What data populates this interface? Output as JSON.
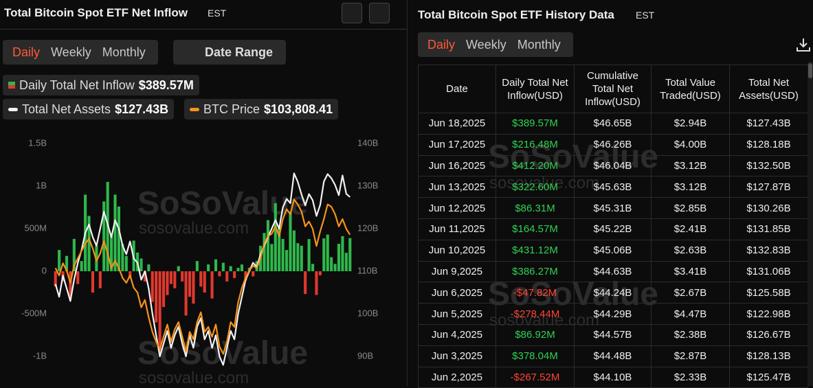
{
  "left": {
    "title": "Total Bitcoin Spot ETF Net Inflow",
    "timezone": "EST",
    "tabs": [
      "Daily",
      "Weekly",
      "Monthly"
    ],
    "date_range": "Date Range",
    "legend": [
      {
        "label": "Daily Total Net Inflow",
        "value": "$389.57M"
      },
      {
        "label": "Total Net Assets",
        "value": "$127.43B"
      },
      {
        "label": "BTC Price",
        "value": "$103,808.41"
      }
    ]
  },
  "chart_data": {
    "type": "bar-line",
    "grid": false,
    "ylim": [
      -1000,
      1500
    ],
    "yticks": [
      {
        "value": -1000,
        "label": "-1B"
      },
      {
        "value": -500,
        "label": "-500M"
      },
      0,
      {
        "value": 500,
        "label": "500M"
      },
      {
        "value": 1000,
        "label": "1B"
      },
      {
        "value": 1500,
        "label": "1.5B"
      }
    ],
    "y2lim": [
      90,
      140
    ],
    "y2ticks": [
      {
        "value": 90,
        "label": "90B"
      },
      {
        "value": 100,
        "label": "100B"
      },
      {
        "value": 110,
        "label": "110B"
      },
      {
        "value": 120,
        "label": "120B"
      },
      {
        "value": 130,
        "label": "130B"
      },
      {
        "value": 140,
        "label": "140B"
      }
    ],
    "y3lim": [
      79000,
      122400
    ],
    "series": [
      {
        "name": "Daily Total Net Inflow",
        "type": "bar",
        "positive_color": "#2fb84c",
        "negative_color": "#e0392f",
        "values": [
          -180,
          250,
          -120,
          180,
          -300,
          380,
          -150,
          120,
          900,
          650,
          -250,
          300,
          -200,
          820,
          1050,
          420,
          900,
          760,
          320,
          180,
          -80,
          360,
          220,
          150,
          -120,
          80,
          -360,
          -600,
          -950,
          -420,
          -280,
          -150,
          -200,
          60,
          -120,
          -520,
          -300,
          -380,
          120,
          -180,
          -250,
          80,
          -320,
          140,
          -60,
          100,
          -120,
          60,
          -80,
          40,
          80,
          -110,
          40,
          -60,
          120,
          300,
          450,
          600,
          320,
          800,
          520,
          380,
          250,
          700,
          480,
          330,
          300,
          -267.52,
          378.04,
          86.92,
          -278.44,
          -47.82,
          386.27,
          431.12,
          164.57,
          86.31,
          322.6,
          412.2,
          216.48,
          389.57
        ]
      },
      {
        "name": "Total Net Assets",
        "type": "line",
        "axis": "y2",
        "color": "#f2f2f2",
        "values": [
          107,
          104,
          109,
          106,
          103,
          108,
          112,
          115,
          119,
          121,
          118,
          116,
          120,
          124,
          121,
          118,
          122,
          120,
          116,
          114,
          117,
          113,
          112,
          108,
          110,
          106,
          100,
          95,
          90,
          93,
          96,
          92,
          95,
          97,
          93,
          90,
          95,
          92,
          97,
          99,
          94,
          96,
          92,
          95,
          90,
          88,
          92,
          96,
          94,
          100,
          104,
          108,
          110,
          112,
          111,
          114,
          116,
          118,
          120,
          122,
          120,
          125,
          127,
          126,
          133,
          131,
          128,
          125.47,
          128.13,
          126.67,
          122.98,
          125.58,
          131.06,
          132.83,
          131.85,
          130.26,
          127.87,
          132.5,
          128.18,
          127.43
        ]
      },
      {
        "name": "BTC Price",
        "type": "line",
        "axis": "y3",
        "color": "#f7931a",
        "values": [
          97000,
          95500,
          98000,
          96500,
          94000,
          97500,
          99000,
          100500,
          102000,
          103000,
          101000,
          98500,
          100000,
          102500,
          100000,
          97000,
          98500,
          97000,
          95000,
          94000,
          95500,
          93000,
          92000,
          89000,
          90500,
          87000,
          84000,
          82000,
          80500,
          83000,
          85500,
          82000,
          84500,
          86000,
          83000,
          80000,
          84000,
          82500,
          86000,
          88000,
          84000,
          85000,
          83000,
          85500,
          81000,
          79500,
          82000,
          86000,
          85000,
          90000,
          93000,
          95000,
          96500,
          97500,
          97000,
          99000,
          102000,
          103500,
          104000,
          105500,
          103500,
          107000,
          109000,
          108000,
          111000,
          110000,
          108500,
          105500,
          106500,
          105000,
          101500,
          104500,
          107000,
          110000,
          109500,
          108000,
          105500,
          107000,
          105000,
          103808.41
        ]
      }
    ]
  },
  "watermark": {
    "name": "SoSoValue",
    "url": "sosovalue.com"
  },
  "right": {
    "title": "Total Bitcoin Spot ETF History Data",
    "timezone": "EST",
    "tabs": [
      "Daily",
      "Weekly",
      "Monthly"
    ]
  },
  "table": {
    "header": [
      "Date",
      "Daily Total Net Inflow(USD)",
      "Cumulative Total Net Inflow(USD)",
      "Total Value Traded(USD)",
      "Total Net Assets(USD)"
    ],
    "rows": [
      [
        "Jun 18,2025",
        "$389.57M",
        "$46.65B",
        "$2.94B",
        "$127.43B"
      ],
      [
        "Jun 17,2025",
        "$216.48M",
        "$46.26B",
        "$4.00B",
        "$128.18B"
      ],
      [
        "Jun 16,2025",
        "$412.20M",
        "$46.04B",
        "$3.12B",
        "$132.50B"
      ],
      [
        "Jun 13,2025",
        "$322.60M",
        "$45.63B",
        "$3.12B",
        "$127.87B"
      ],
      [
        "Jun 12,2025",
        "$86.31M",
        "$45.31B",
        "$2.85B",
        "$130.26B"
      ],
      [
        "Jun 11,2025",
        "$164.57M",
        "$45.22B",
        "$2.41B",
        "$131.85B"
      ],
      [
        "Jun 10,2025",
        "$431.12M",
        "$45.06B",
        "$2.63B",
        "$132.83B"
      ],
      [
        "Jun 9,2025",
        "$386.27M",
        "$44.63B",
        "$3.41B",
        "$131.06B"
      ],
      [
        "Jun 6,2025",
        "-$47.82M",
        "$44.24B",
        "$2.67B",
        "$125.58B"
      ],
      [
        "Jun 5,2025",
        "-$278.44M",
        "$44.29B",
        "$4.47B",
        "$122.98B"
      ],
      [
        "Jun 4,2025",
        "$86.92M",
        "$44.57B",
        "$2.38B",
        "$126.67B"
      ],
      [
        "Jun 3,2025",
        "$378.04M",
        "$44.48B",
        "$2.87B",
        "$128.13B"
      ],
      [
        "Jun 2,2025",
        "-$267.52M",
        "$44.10B",
        "$2.33B",
        "$125.47B"
      ]
    ]
  }
}
